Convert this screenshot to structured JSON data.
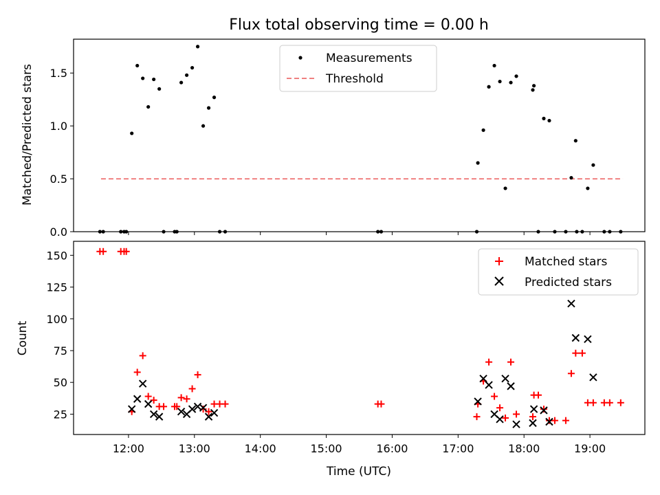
{
  "figure": {
    "title": "Flux total observing time = 0.00 h"
  },
  "chart_data": [
    {
      "type": "scatter",
      "ylabel": "Matched/Predicted stars",
      "xlabel": "",
      "xlim": [
        "11:10",
        "19:50"
      ],
      "ylim": [
        0,
        1.82
      ],
      "yticks": [
        0.0,
        0.5,
        1.0,
        1.5
      ],
      "ytick_labels": [
        "0.0",
        "0.5",
        "1.0",
        "1.5"
      ],
      "grid": false,
      "legend_position": "upper center",
      "legend": [
        {
          "label": "Measurements",
          "marker": "dot",
          "color": "#000000"
        },
        {
          "label": "Threshold",
          "marker": "dashed-line",
          "color": "#f08080"
        }
      ],
      "threshold": {
        "y": 0.5,
        "x_start": "11:35",
        "x_end": "19:30",
        "color": "#f08080",
        "style": "dashed"
      },
      "series": [
        {
          "name": "Measurements",
          "color": "#000000",
          "points": [
            [
              "11:34",
              0
            ],
            [
              "11:37",
              0
            ],
            [
              "11:53",
              0
            ],
            [
              "11:56",
              0
            ],
            [
              "11:58",
              0
            ],
            [
              "12:03",
              0.93
            ],
            [
              "12:08",
              1.57
            ],
            [
              "12:13",
              1.45
            ],
            [
              "12:18",
              1.18
            ],
            [
              "12:23",
              1.44
            ],
            [
              "12:28",
              1.35
            ],
            [
              "12:32",
              0
            ],
            [
              "12:42",
              0
            ],
            [
              "12:44",
              0
            ],
            [
              "12:48",
              1.41
            ],
            [
              "12:53",
              1.48
            ],
            [
              "12:58",
              1.55
            ],
            [
              "13:03",
              1.75
            ],
            [
              "13:08",
              1.0
            ],
            [
              "13:13",
              1.17
            ],
            [
              "13:18",
              1.27
            ],
            [
              "13:23",
              0
            ],
            [
              "13:28",
              0
            ],
            [
              "15:47",
              0
            ],
            [
              "15:50",
              0
            ],
            [
              "17:17",
              0
            ],
            [
              "17:18",
              0.65
            ],
            [
              "17:23",
              0.96
            ],
            [
              "17:28",
              1.37
            ],
            [
              "17:33",
              1.57
            ],
            [
              "17:38",
              1.42
            ],
            [
              "17:43",
              0.41
            ],
            [
              "17:48",
              1.41
            ],
            [
              "17:53",
              1.47
            ],
            [
              "18:08",
              1.34
            ],
            [
              "18:09",
              1.38
            ],
            [
              "18:13",
              0
            ],
            [
              "18:18",
              1.07
            ],
            [
              "18:23",
              1.05
            ],
            [
              "18:28",
              0
            ],
            [
              "18:38",
              0
            ],
            [
              "18:48",
              0
            ],
            [
              "18:43",
              0.51
            ],
            [
              "18:47",
              0.86
            ],
            [
              "18:53",
              0
            ],
            [
              "18:58",
              0.41
            ],
            [
              "19:03",
              0.63
            ],
            [
              "19:13",
              0
            ],
            [
              "19:18",
              0
            ],
            [
              "19:28",
              0
            ]
          ]
        }
      ]
    },
    {
      "type": "scatter",
      "ylabel": "Count",
      "xlabel": "Time (UTC)",
      "xlim": [
        "11:10",
        "19:50"
      ],
      "ylim": [
        9,
        161
      ],
      "yticks": [
        25,
        50,
        75,
        100,
        125,
        150
      ],
      "ytick_labels": [
        "25",
        "50",
        "75",
        "100",
        "125",
        "150"
      ],
      "xticks": [
        "12:00",
        "13:00",
        "14:00",
        "15:00",
        "16:00",
        "17:00",
        "18:00",
        "19:00"
      ],
      "xtick_labels": [
        "12:00",
        "13:00",
        "14:00",
        "15:00",
        "16:00",
        "17:00",
        "18:00",
        "19:00"
      ],
      "grid": false,
      "legend_position": "upper right",
      "legend": [
        {
          "label": "Matched stars",
          "marker": "plus",
          "color": "#ff0000"
        },
        {
          "label": "Predicted stars",
          "marker": "x",
          "color": "#000000"
        }
      ],
      "series": [
        {
          "name": "Matched stars",
          "marker": "plus",
          "color": "#ff0000",
          "points": [
            [
              "11:34",
              153
            ],
            [
              "11:37",
              153
            ],
            [
              "11:53",
              153
            ],
            [
              "11:56",
              153
            ],
            [
              "11:58",
              153
            ],
            [
              "12:03",
              27
            ],
            [
              "12:08",
              58
            ],
            [
              "12:13",
              71
            ],
            [
              "12:18",
              39
            ],
            [
              "12:23",
              36
            ],
            [
              "12:28",
              31
            ],
            [
              "12:32",
              31
            ],
            [
              "12:42",
              31
            ],
            [
              "12:44",
              31
            ],
            [
              "12:48",
              38
            ],
            [
              "12:53",
              37
            ],
            [
              "12:58",
              45
            ],
            [
              "13:03",
              56
            ],
            [
              "13:08",
              29
            ],
            [
              "13:13",
              27
            ],
            [
              "13:18",
              33
            ],
            [
              "13:23",
              33
            ],
            [
              "13:28",
              33
            ],
            [
              "15:47",
              33
            ],
            [
              "15:50",
              33
            ],
            [
              "17:17",
              23
            ],
            [
              "17:18",
              33
            ],
            [
              "17:23",
              51
            ],
            [
              "17:28",
              66
            ],
            [
              "17:33",
              39
            ],
            [
              "17:38",
              30
            ],
            [
              "17:43",
              22
            ],
            [
              "17:48",
              66
            ],
            [
              "17:53",
              25
            ],
            [
              "18:08",
              23
            ],
            [
              "18:09",
              40
            ],
            [
              "18:13",
              40
            ],
            [
              "18:18",
              29
            ],
            [
              "18:23",
              20
            ],
            [
              "18:28",
              20
            ],
            [
              "18:38",
              20
            ],
            [
              "18:43",
              57
            ],
            [
              "18:47",
              73
            ],
            [
              "18:53",
              73
            ],
            [
              "18:58",
              34
            ],
            [
              "19:03",
              34
            ],
            [
              "19:13",
              34
            ],
            [
              "19:18",
              34
            ],
            [
              "19:28",
              34
            ]
          ]
        },
        {
          "name": "Predicted stars",
          "marker": "x",
          "color": "#000000",
          "points": [
            [
              "12:03",
              29
            ],
            [
              "12:08",
              37
            ],
            [
              "12:13",
              49
            ],
            [
              "12:18",
              33
            ],
            [
              "12:23",
              25
            ],
            [
              "12:28",
              23
            ],
            [
              "12:48",
              27
            ],
            [
              "12:53",
              25
            ],
            [
              "12:58",
              29
            ],
            [
              "13:03",
              31
            ],
            [
              "13:08",
              30
            ],
            [
              "13:13",
              23
            ],
            [
              "13:18",
              26
            ],
            [
              "17:18",
              35
            ],
            [
              "17:23",
              53
            ],
            [
              "17:28",
              48
            ],
            [
              "17:33",
              25
            ],
            [
              "17:38",
              21
            ],
            [
              "17:43",
              53
            ],
            [
              "17:48",
              47
            ],
            [
              "17:53",
              17
            ],
            [
              "18:08",
              18
            ],
            [
              "18:09",
              29
            ],
            [
              "18:18",
              28
            ],
            [
              "18:23",
              19
            ],
            [
              "18:43",
              112
            ],
            [
              "18:47",
              85
            ],
            [
              "18:58",
              84
            ],
            [
              "19:03",
              54
            ]
          ]
        }
      ]
    }
  ]
}
